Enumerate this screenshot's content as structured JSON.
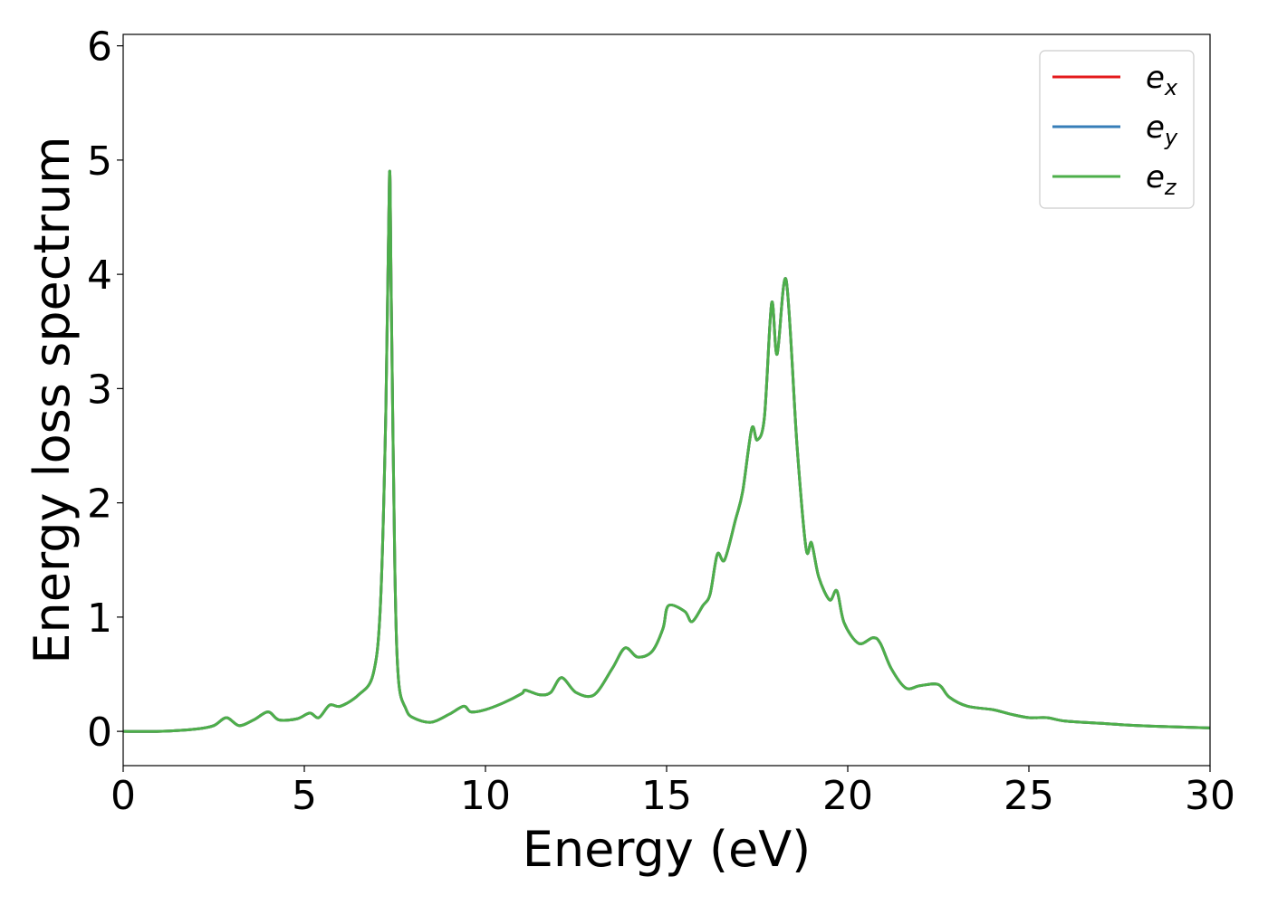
{
  "chart_data": {
    "type": "line",
    "title": "",
    "xlabel": "Energy (eV)",
    "ylabel": "Energy loss spectrum",
    "xlim": [
      0,
      30
    ],
    "ylim": [
      -0.3,
      6.1
    ],
    "xticks": [
      0,
      5,
      10,
      15,
      20,
      25,
      30
    ],
    "yticks": [
      0,
      1,
      2,
      3,
      4,
      5,
      6
    ],
    "grid": false,
    "legend_position": "top-right",
    "series": [
      {
        "name": "e_x",
        "label_base": "e",
        "label_sub": "x",
        "color": "#e41a1c"
      },
      {
        "name": "e_y",
        "label_base": "e",
        "label_sub": "y",
        "color": "#377eb8"
      },
      {
        "name": "e_z",
        "label_base": "e",
        "label_sub": "z",
        "color": "#4daf4a"
      }
    ],
    "x": [
      0,
      1,
      2,
      2.5,
      2.85,
      3.2,
      3.6,
      4.0,
      4.3,
      4.8,
      5.15,
      5.4,
      5.7,
      6.0,
      6.5,
      6.9,
      7.1,
      7.25,
      7.35,
      7.4,
      7.5,
      7.6,
      7.8,
      8.0,
      8.5,
      9.0,
      9.4,
      9.6,
      10.0,
      10.5,
      11.0,
      11.1,
      11.5,
      11.8,
      12.1,
      12.5,
      13.0,
      13.5,
      13.85,
      14.2,
      14.6,
      14.9,
      15.05,
      15.5,
      15.7,
      16.0,
      16.2,
      16.4,
      16.6,
      16.9,
      17.1,
      17.35,
      17.5,
      17.7,
      17.9,
      18.05,
      18.3,
      18.6,
      18.85,
      19.0,
      19.2,
      19.5,
      19.7,
      19.9,
      20.3,
      20.7,
      20.9,
      21.2,
      21.6,
      22.0,
      22.5,
      22.8,
      23.3,
      24.0,
      24.5,
      25.0,
      25.5,
      26.0,
      27.0,
      28.0,
      29.0,
      30.0
    ],
    "values": [
      0.0,
      0.0,
      0.02,
      0.05,
      0.12,
      0.05,
      0.1,
      0.17,
      0.1,
      0.11,
      0.16,
      0.12,
      0.23,
      0.22,
      0.32,
      0.5,
      1.1,
      2.8,
      4.88,
      3.8,
      1.4,
      0.45,
      0.2,
      0.12,
      0.08,
      0.15,
      0.22,
      0.17,
      0.19,
      0.25,
      0.33,
      0.36,
      0.32,
      0.34,
      0.47,
      0.34,
      0.32,
      0.55,
      0.73,
      0.65,
      0.7,
      0.9,
      1.1,
      1.05,
      0.96,
      1.1,
      1.2,
      1.55,
      1.5,
      1.85,
      2.1,
      2.65,
      2.55,
      2.75,
      3.75,
      3.3,
      3.95,
      2.5,
      1.6,
      1.65,
      1.35,
      1.15,
      1.23,
      0.95,
      0.77,
      0.82,
      0.77,
      0.55,
      0.38,
      0.4,
      0.41,
      0.3,
      0.22,
      0.19,
      0.15,
      0.12,
      0.12,
      0.09,
      0.07,
      0.05,
      0.04,
      0.03
    ]
  }
}
